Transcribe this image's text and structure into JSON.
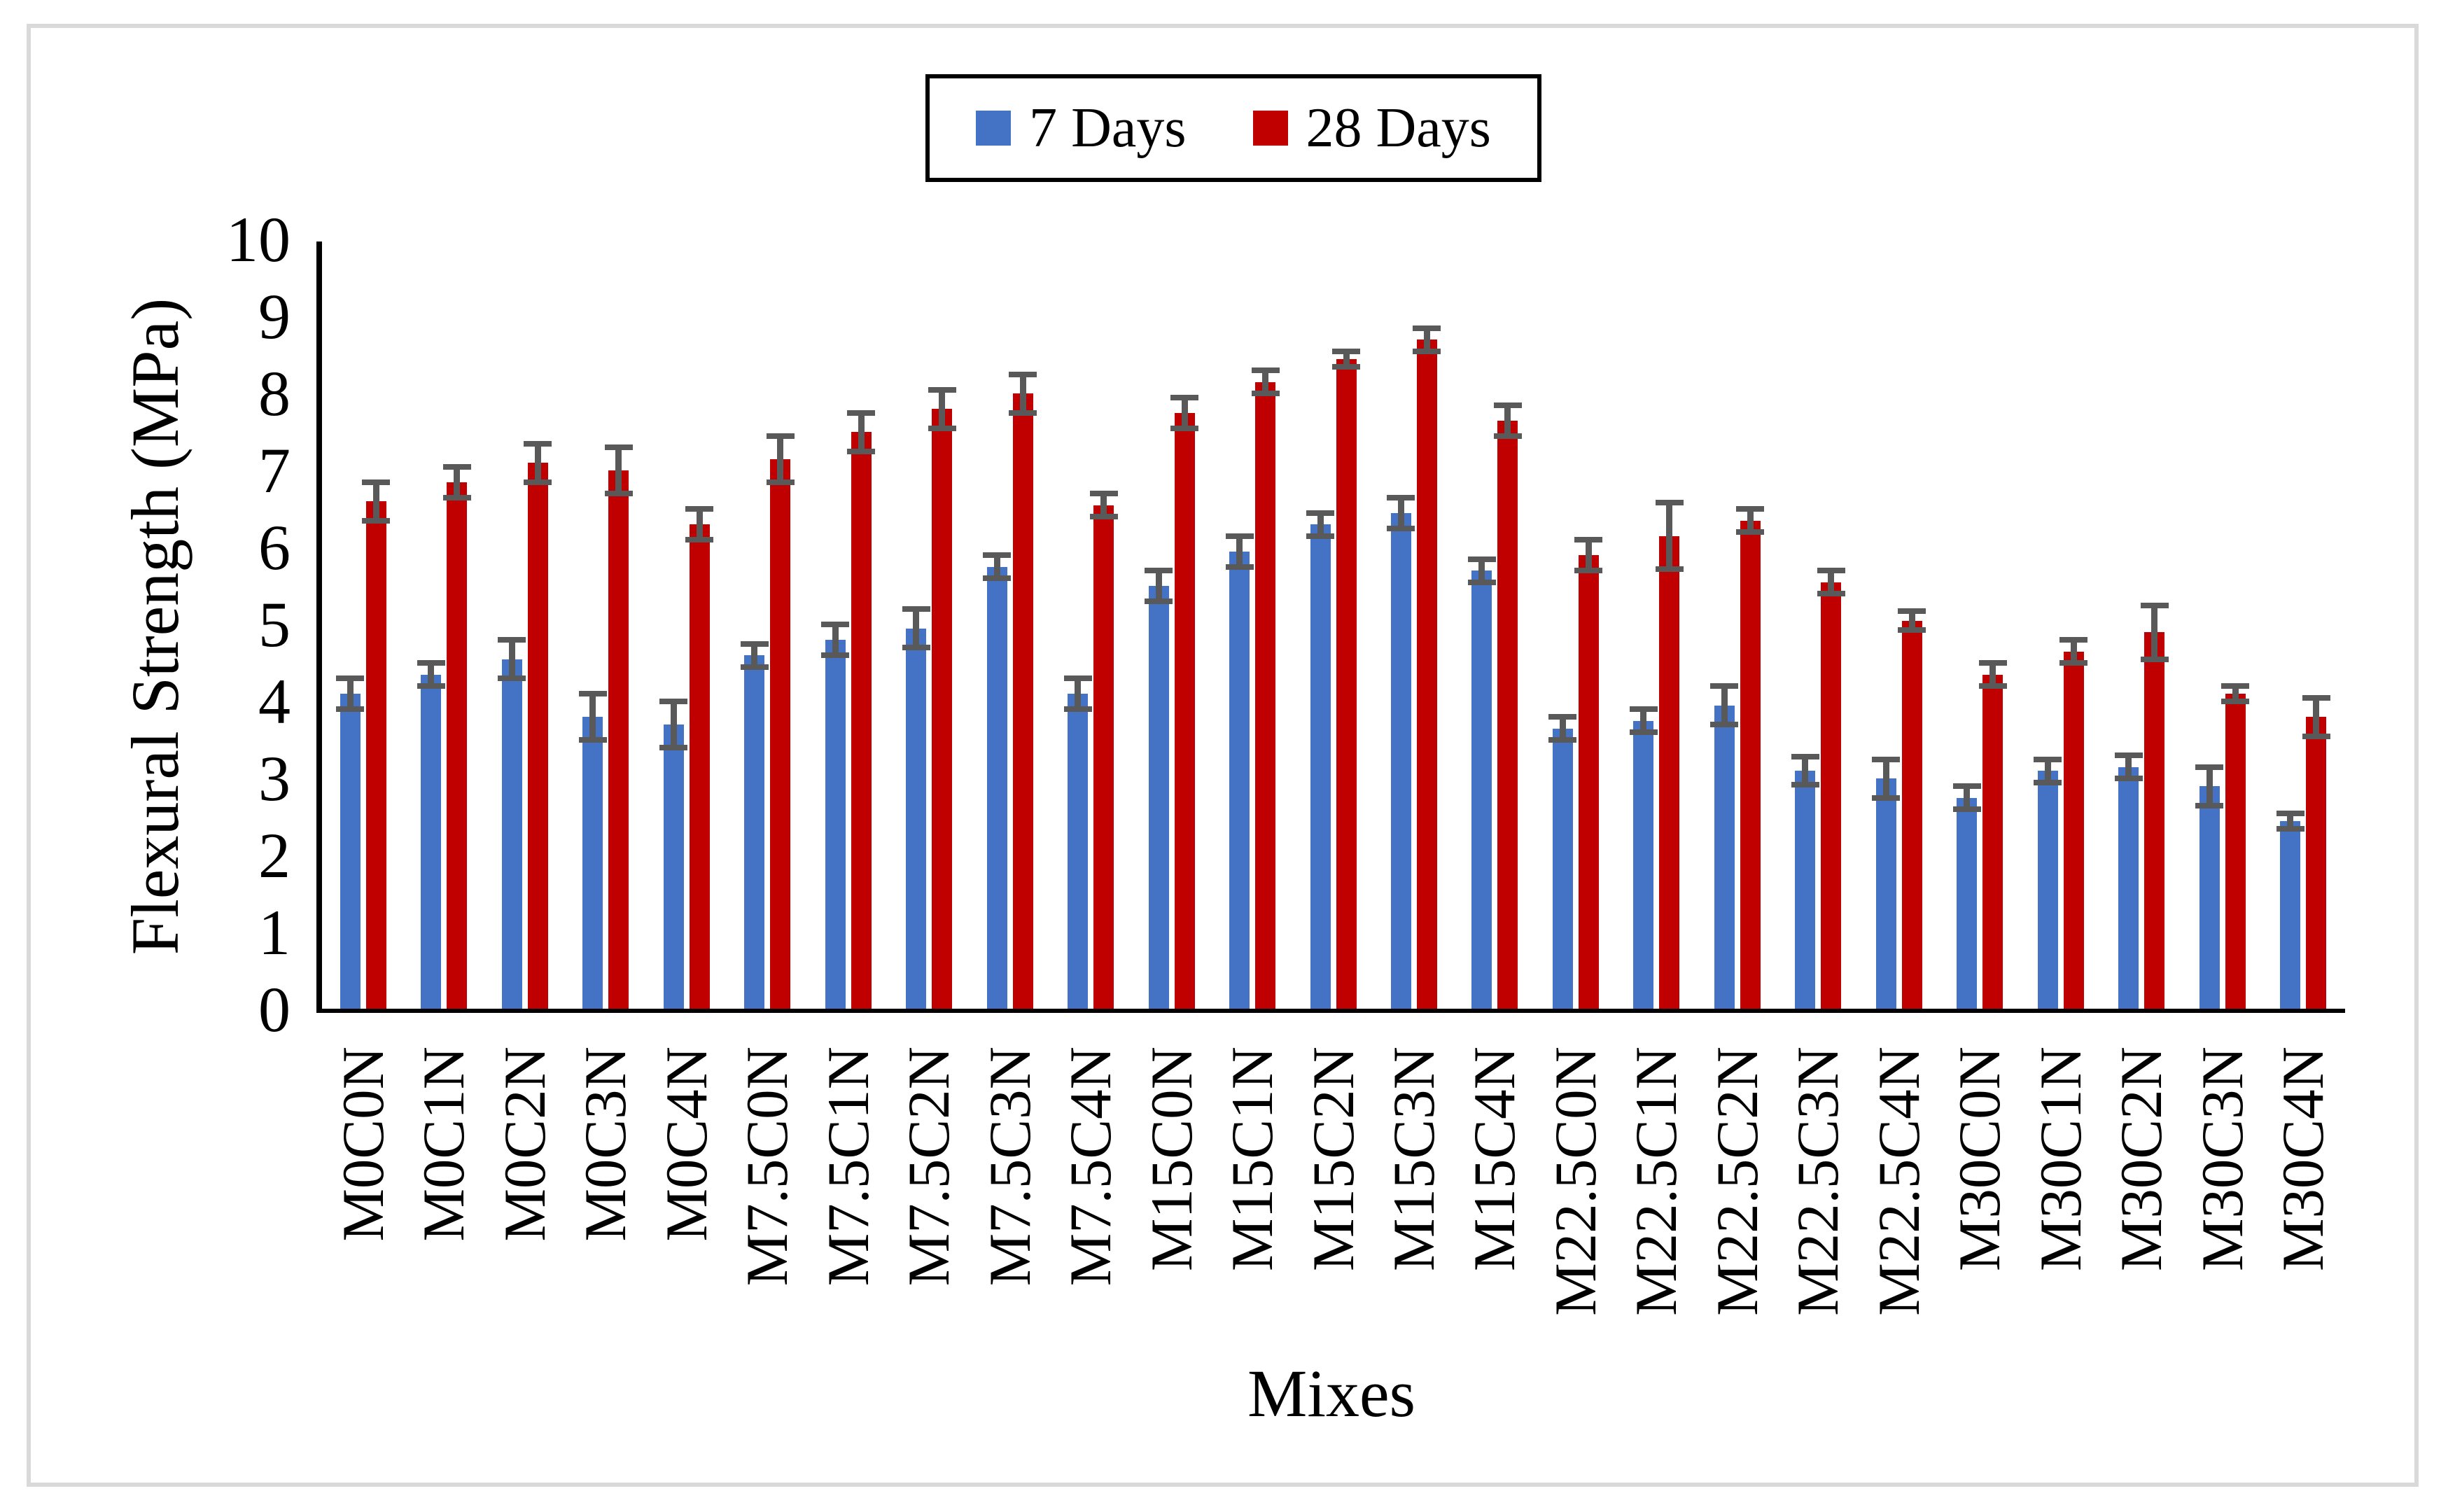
{
  "figure": {
    "background": "#FFFFFF",
    "frame_border_color": "#D9D9D9",
    "axis_color": "#000000"
  },
  "legend": {
    "position": "top",
    "items": [
      {
        "label": "7 Days",
        "color": "#4472C4"
      },
      {
        "label": "28 Days",
        "color": "#C00000"
      }
    ]
  },
  "y_axis": {
    "title": "Flexural Strength (MPa)",
    "min": 0,
    "max": 10,
    "tick_step": 1,
    "tick_labels": [
      "0",
      "1",
      "2",
      "3",
      "4",
      "5",
      "6",
      "7",
      "8",
      "9",
      "10"
    ]
  },
  "x_axis": {
    "title": "Mixes"
  },
  "chart_data": {
    "type": "bar",
    "title": "",
    "xlabel": "Mixes",
    "ylabel": "Flexural Strength (MPa)",
    "ylim": [
      0,
      10
    ],
    "grid": false,
    "legend_position": "top",
    "error_bar_color": "#595959",
    "categories": [
      "M0C0N",
      "M0C1N",
      "M0C2N",
      "M0C3N",
      "M0C4N",
      "M7.5C0N",
      "M7.5C1N",
      "M7.5C2N",
      "M7.5C3N",
      "M7.5C4N",
      "M15C0N",
      "M15C1N",
      "M15C2N",
      "M15C3N",
      "M15C4N",
      "M22.5C0N",
      "M22.5C1N",
      "M22.5C2N",
      "M22.5C3N",
      "M22.5C4N",
      "M30C0N",
      "M30C1N",
      "M30C2N",
      "M30C3N",
      "M30C4N"
    ],
    "series": [
      {
        "name": "7 Days",
        "color": "#4472C4",
        "values": [
          4.1,
          4.35,
          4.55,
          3.8,
          3.7,
          4.6,
          4.8,
          4.95,
          5.75,
          4.1,
          5.5,
          5.95,
          6.3,
          6.45,
          5.7,
          3.65,
          3.75,
          3.95,
          3.1,
          3.0,
          2.75,
          3.1,
          3.15,
          2.9,
          2.45
        ],
        "errors": [
          0.2,
          0.15,
          0.25,
          0.3,
          0.3,
          0.15,
          0.2,
          0.25,
          0.15,
          0.2,
          0.2,
          0.2,
          0.15,
          0.2,
          0.15,
          0.15,
          0.15,
          0.25,
          0.18,
          0.25,
          0.15,
          0.15,
          0.15,
          0.25,
          0.1
        ]
      },
      {
        "name": "28 Days",
        "color": "#C00000",
        "values": [
          6.6,
          6.85,
          7.1,
          7.0,
          6.3,
          7.15,
          7.5,
          7.8,
          8.0,
          6.55,
          7.75,
          8.15,
          8.45,
          8.7,
          7.65,
          5.9,
          6.15,
          6.35,
          5.55,
          5.05,
          4.35,
          4.65,
          4.9,
          4.1,
          3.8
        ],
        "errors": [
          0.25,
          0.2,
          0.25,
          0.3,
          0.2,
          0.3,
          0.25,
          0.25,
          0.25,
          0.15,
          0.2,
          0.15,
          0.1,
          0.15,
          0.2,
          0.2,
          0.43,
          0.15,
          0.15,
          0.12,
          0.15,
          0.15,
          0.35,
          0.1,
          0.25
        ]
      }
    ]
  }
}
